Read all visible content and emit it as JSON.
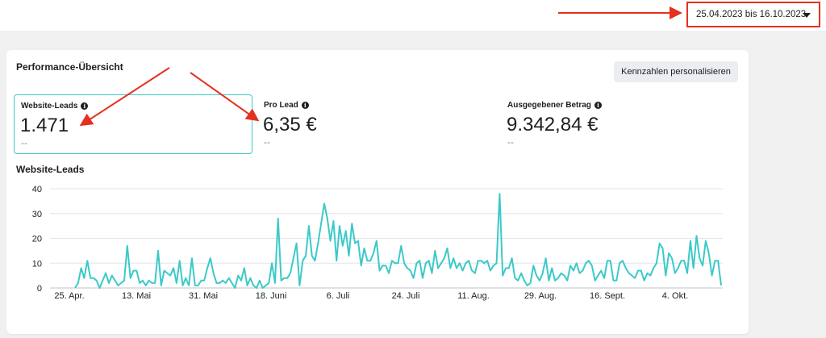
{
  "date_range": {
    "label": "25.04.2023 bis 16.10.2023"
  },
  "panel": {
    "title": "Performance-Übersicht",
    "personalize_button": "Kennzahlen personalisieren"
  },
  "metrics": [
    {
      "label": "Website-Leads",
      "value": "1.471",
      "compare": "--"
    },
    {
      "label": "Pro Lead",
      "value": "6,35 €",
      "compare": "--"
    },
    {
      "label": "Ausgegebener Betrag",
      "value": "9.342,84 €",
      "compare": "--"
    }
  ],
  "chart_title": "Website-Leads",
  "colors": {
    "line": "#3cc9c9",
    "annotation": "#e5301f",
    "selected_border": "#3cc9c9"
  },
  "chart_data": {
    "type": "line",
    "title": "",
    "xlabel": "",
    "ylabel": "",
    "ylim": [
      0,
      40
    ],
    "yticks": [
      0,
      10,
      20,
      30,
      40
    ],
    "xtick_labels": [
      "25. Apr.",
      "13. Mai",
      "31. Mai",
      "18. Juni",
      "6. Juli",
      "24. Juli",
      "11. Aug.",
      "29. Aug.",
      "16. Sept.",
      "4. Okt."
    ],
    "grid": true,
    "series": [
      {
        "name": "",
        "values": [
          0,
          2,
          8,
          4,
          11,
          4,
          4,
          3,
          0,
          3,
          6,
          2,
          5,
          3,
          1,
          2,
          3,
          17,
          4,
          7,
          7,
          2,
          3,
          1,
          3,
          2,
          2,
          15,
          1,
          7,
          6,
          5,
          8,
          2,
          11,
          1,
          4,
          1,
          12,
          1,
          1,
          3,
          3,
          8,
          12,
          6,
          2,
          2,
          3,
          2,
          4,
          2,
          0,
          5,
          3,
          8,
          1,
          4,
          1,
          0,
          3,
          0,
          1,
          2,
          10,
          2,
          28,
          3,
          4,
          4,
          6,
          12,
          18,
          1,
          11,
          13,
          25,
          13,
          11,
          18,
          26,
          34,
          28,
          19,
          27,
          11,
          25,
          17,
          23,
          13,
          26,
          18,
          19,
          9,
          16,
          11,
          11,
          14,
          19,
          7,
          9,
          9,
          6,
          11,
          10,
          10,
          17,
          10,
          8,
          7,
          4,
          10,
          11,
          4,
          10,
          11,
          6,
          15,
          8,
          10,
          12,
          16,
          8,
          12,
          8,
          10,
          7,
          10,
          11,
          7,
          6,
          11,
          11,
          10,
          11,
          7,
          9,
          10,
          38,
          5,
          8,
          8,
          12,
          4,
          3,
          6,
          3,
          1,
          2,
          9,
          5,
          3,
          6,
          12,
          3,
          8,
          3,
          4,
          6,
          5,
          3,
          9,
          7,
          10,
          6,
          7,
          10,
          11,
          9,
          3,
          5,
          7,
          4,
          11,
          11,
          3,
          3,
          10,
          11,
          8,
          6,
          5,
          4,
          7,
          7,
          3,
          6,
          5,
          8,
          10,
          18,
          16,
          5,
          14,
          12,
          6,
          8,
          11,
          11,
          6,
          19,
          8,
          21,
          12,
          9,
          19,
          14,
          5,
          11,
          11,
          1
        ]
      }
    ]
  }
}
